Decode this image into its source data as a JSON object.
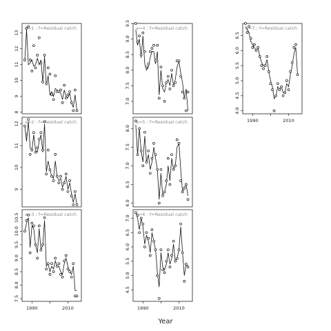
{
  "xlabel": "Year",
  "chart_data": [
    {
      "type": "line",
      "panel_label": "a=1 : f=Residual catch",
      "ylim": [
        7.9,
        13.6
      ],
      "yticks": [
        8,
        9,
        10,
        11,
        12,
        13
      ],
      "x": [
        1986,
        1987,
        1988,
        1989,
        1990,
        1991,
        1992,
        1993,
        1994,
        1995,
        1996,
        1997,
        1998,
        1999,
        2000,
        2001,
        2002,
        2003,
        2004,
        2005,
        2006,
        2007,
        2008,
        2009,
        2010,
        2011,
        2012,
        2013,
        2014,
        2015
      ],
      "points": [
        11.3,
        13.3,
        13.4,
        11.3,
        10.6,
        12.2,
        10.8,
        11.6,
        12.7,
        11.1,
        9.9,
        11.6,
        9.8,
        10.8,
        10.4,
        9.1,
        8.8,
        10.3,
        9.3,
        9.3,
        9.4,
        8.6,
        9.7,
        8.9,
        9.1,
        9.3,
        8.6,
        8.1,
        9.4,
        8.1
      ],
      "fitted": [
        11.2,
        13.2,
        11.0,
        11.1,
        11.3,
        10.9,
        11.0,
        11.4,
        11.0,
        11.3,
        9.9,
        11.5,
        9.7,
        10.3,
        9.1,
        9.3,
        9.0,
        9.5,
        9.4,
        9.3,
        9.2,
        8.8,
        9.4,
        9.0,
        8.9,
        9.2,
        8.6,
        8.3,
        9.1,
        8.1
      ]
    },
    {
      "type": "line",
      "panel_label": "a=4 : f=Residual catch",
      "ylim": [
        6.6,
        9.5
      ],
      "yticks": [
        7.0,
        7.5,
        8.0,
        8.5,
        9.0,
        9.5
      ],
      "x": [
        1986,
        1987,
        1988,
        1989,
        1990,
        1991,
        1992,
        1993,
        1994,
        1995,
        1996,
        1997,
        1998,
        1999,
        2000,
        2001,
        2002,
        2003,
        2004,
        2005,
        2006,
        2007,
        2008,
        2009,
        2010,
        2011,
        2012,
        2013,
        2014,
        2015
      ],
      "points": [
        9.5,
        8.9,
        9.1,
        8.5,
        9.2,
        8.6,
        8.1,
        8.2,
        8.6,
        8.7,
        8.8,
        8.3,
        8.8,
        7.1,
        8.1,
        7.5,
        7.0,
        7.6,
        7.8,
        7.4,
        8.0,
        7.5,
        7.6,
        8.3,
        8.3,
        7.8,
        7.3,
        7.1,
        6.7,
        7.3
      ],
      "fitted": [
        9.3,
        8.8,
        9.0,
        8.4,
        9.1,
        8.2,
        8.0,
        8.1,
        8.4,
        8.6,
        8.6,
        8.2,
        8.6,
        7.2,
        8.0,
        7.4,
        7.3,
        7.6,
        7.7,
        7.5,
        7.9,
        7.5,
        7.7,
        8.1,
        8.3,
        7.9,
        7.6,
        7.1,
        7.4,
        6.7
      ]
    },
    {
      "type": "line",
      "panel_label": "a=7 : f=Residual catch",
      "ylim": [
        3.9,
        6.9
      ],
      "yticks": [
        4.0,
        4.5,
        5.0,
        5.5,
        6.0,
        6.5
      ],
      "x": [
        1986,
        1987,
        1988,
        1989,
        1990,
        1991,
        1992,
        1993,
        1994,
        1995,
        1996,
        1997,
        1998,
        1999,
        2000,
        2001,
        2002,
        2003,
        2004,
        2005,
        2006,
        2007,
        2008,
        2009,
        2010,
        2011,
        2012,
        2013,
        2014,
        2015
      ],
      "points": [
        6.9,
        6.6,
        6.8,
        6.4,
        6.1,
        6.2,
        6.0,
        6.1,
        5.8,
        5.5,
        5.4,
        5.5,
        5.8,
        5.3,
        4.9,
        4.7,
        4.0,
        4.5,
        4.9,
        4.7,
        4.8,
        4.5,
        4.6,
        5.0,
        4.7,
        5.3,
        5.6,
        6.1,
        6.2,
        5.2
      ],
      "fitted": [
        6.8,
        6.7,
        6.6,
        6.3,
        6.2,
        6.1,
        6.0,
        6.1,
        5.8,
        5.6,
        5.5,
        5.5,
        5.7,
        5.3,
        5.0,
        4.8,
        4.4,
        4.5,
        4.8,
        4.7,
        4.8,
        4.6,
        4.6,
        4.9,
        4.8,
        5.2,
        5.5,
        5.9,
        6.1,
        5.2
      ]
    },
    {
      "type": "line",
      "panel_label": "a=2 : f=Residual catch",
      "ylim": [
        8.2,
        12.3
      ],
      "yticks": [
        9,
        10,
        11,
        12
      ],
      "x": [
        1986,
        1987,
        1988,
        1989,
        1990,
        1991,
        1992,
        1993,
        1994,
        1995,
        1996,
        1997,
        1998,
        1999,
        2000,
        2001,
        2002,
        2003,
        2004,
        2005,
        2006,
        2007,
        2008,
        2009,
        2010,
        2011,
        2012,
        2013,
        2014,
        2015
      ],
      "points": [
        11.9,
        11.5,
        12.2,
        10.6,
        10.8,
        11.6,
        10.7,
        10.9,
        11.3,
        11.6,
        10.8,
        12.1,
        9.7,
        10.8,
        9.9,
        9.6,
        9.4,
        10.6,
        9.6,
        9.3,
        9.6,
        9.0,
        9.3,
        9.7,
        8.9,
        9.4,
        8.7,
        8.3,
        8.9,
        8.3
      ],
      "fitted": [
        11.9,
        11.2,
        12.1,
        10.9,
        10.8,
        11.5,
        10.8,
        10.7,
        11.2,
        11.5,
        10.7,
        12.0,
        9.8,
        10.3,
        9.9,
        9.6,
        9.5,
        10.3,
        9.6,
        9.4,
        9.5,
        9.1,
        9.3,
        9.6,
        9.0,
        9.3,
        8.8,
        8.4,
        8.8,
        8.3
      ]
    },
    {
      "type": "line",
      "panel_label": "a=5 : f=Residual catch",
      "ylim": [
        5.9,
        8.3
      ],
      "yticks": [
        6.0,
        6.5,
        7.0,
        7.5,
        8.0
      ],
      "x": [
        1986,
        1987,
        1988,
        1989,
        1990,
        1991,
        1992,
        1993,
        1994,
        1995,
        1996,
        1997,
        1998,
        1999,
        2000,
        2001,
        2002,
        2003,
        2004,
        2005,
        2006,
        2007,
        2008,
        2009,
        2010,
        2011,
        2012,
        2013,
        2014,
        2015
      ],
      "points": [
        8.2,
        7.3,
        8.0,
        7.4,
        7.0,
        7.9,
        7.1,
        7.4,
        6.8,
        7.2,
        7.6,
        7.3,
        6.9,
        6.0,
        6.9,
        6.2,
        6.3,
        6.6,
        7.2,
        6.5,
        7.3,
        6.9,
        7.0,
        7.7,
        7.6,
        6.6,
        6.3,
        6.4,
        6.5,
        6.1
      ],
      "fitted": [
        8.1,
        7.3,
        8.0,
        7.4,
        7.1,
        7.8,
        7.1,
        7.3,
        6.9,
        7.1,
        7.5,
        7.2,
        6.9,
        6.1,
        6.8,
        6.2,
        6.3,
        6.5,
        7.0,
        6.6,
        7.2,
        6.9,
        7.0,
        7.5,
        7.6,
        6.9,
        6.3,
        6.4,
        6.5,
        6.2
      ]
    },
    {
      "type": "line",
      "panel_label": "a=3 : f=Residual catch",
      "ylim": [
        7.4,
        10.8
      ],
      "yticks": [
        7.5,
        8.0,
        8.5,
        9.0,
        9.5,
        10.0,
        10.5
      ],
      "x": [
        1986,
        1987,
        1988,
        1989,
        1990,
        1991,
        1992,
        1993,
        1994,
        1995,
        1996,
        1997,
        1998,
        1999,
        2000,
        2001,
        2002,
        2003,
        2004,
        2005,
        2006,
        2007,
        2008,
        2009,
        2010,
        2011,
        2012,
        2013,
        2014,
        2015
      ],
      "points": [
        10.0,
        10.4,
        10.6,
        9.2,
        10.3,
        10.2,
        9.5,
        9.0,
        10.2,
        9.3,
        9.5,
        10.5,
        8.6,
        8.8,
        8.4,
        8.8,
        8.5,
        9.0,
        8.7,
        8.8,
        8.4,
        8.3,
        8.9,
        9.1,
        8.6,
        8.5,
        8.3,
        8.8,
        7.6,
        7.6
      ],
      "fitted": [
        10.0,
        10.3,
        10.5,
        9.4,
        10.2,
        10.1,
        9.5,
        9.2,
        10.1,
        9.3,
        9.5,
        10.4,
        8.7,
        8.8,
        8.5,
        8.7,
        8.6,
        8.9,
        8.7,
        8.7,
        8.5,
        8.4,
        8.8,
        9.0,
        8.7,
        8.5,
        8.4,
        8.7,
        7.8,
        7.8
      ]
    },
    {
      "type": "line",
      "panel_label": "a=6 : f=Residual catch",
      "ylim": [
        4.1,
        7.3
      ],
      "yticks": [
        4.5,
        5.0,
        5.5,
        6.0,
        6.5,
        7.0
      ],
      "x": [
        1986,
        1987,
        1988,
        1989,
        1990,
        1991,
        1992,
        1993,
        1994,
        1995,
        1996,
        1997,
        1998,
        1999,
        2000,
        2001,
        2002,
        2003,
        2004,
        2005,
        2006,
        2007,
        2008,
        2009,
        2010,
        2011,
        2012,
        2013,
        2014,
        2015
      ],
      "points": [
        7.2,
        7.1,
        6.5,
        7.0,
        6.8,
        6.0,
        6.5,
        6.3,
        5.7,
        6.6,
        6.2,
        5.9,
        5.0,
        4.2,
        5.9,
        5.2,
        5.1,
        5.5,
        5.9,
        5.3,
        5.7,
        6.2,
        5.5,
        5.6,
        5.9,
        6.8,
        5.8,
        4.8,
        5.4,
        5.3
      ],
      "fitted": [
        7.2,
        7.0,
        6.6,
        7.0,
        6.7,
        6.1,
        6.4,
        6.2,
        5.8,
        6.5,
        6.2,
        5.9,
        5.1,
        4.6,
        5.8,
        5.3,
        5.2,
        5.4,
        5.8,
        5.4,
        5.6,
        6.1,
        5.5,
        5.6,
        5.9,
        6.7,
        5.8,
        5.0,
        5.4,
        5.3
      ]
    }
  ]
}
